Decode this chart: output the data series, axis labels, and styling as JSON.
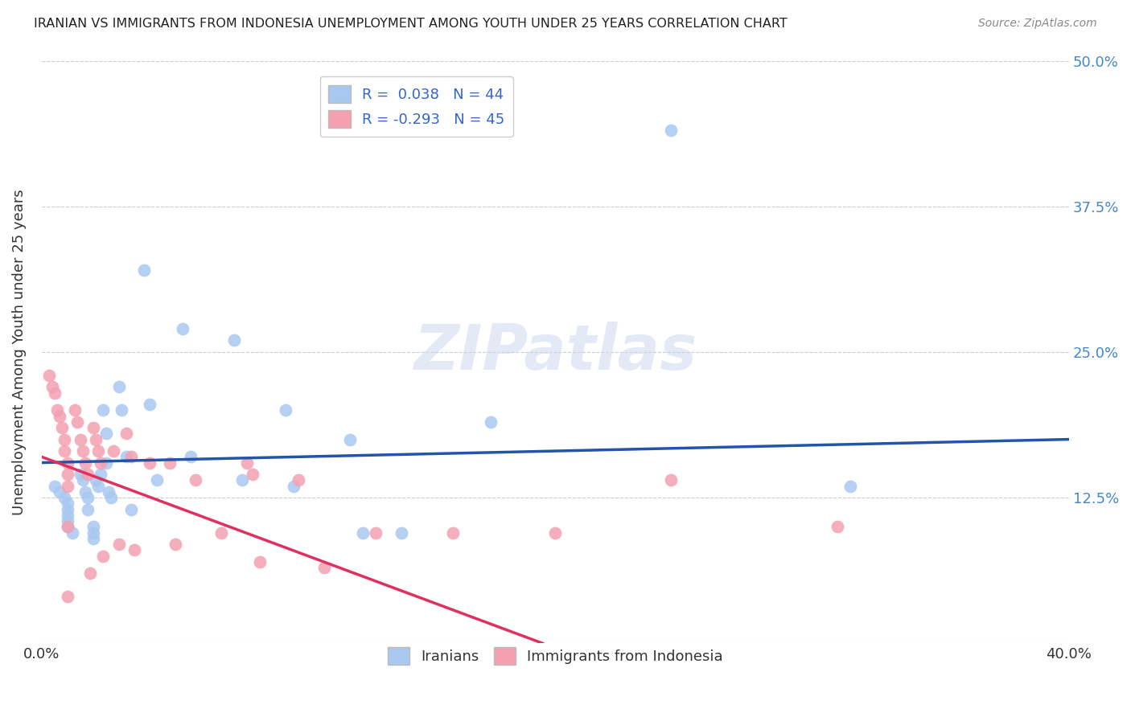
{
  "title": "IRANIAN VS IMMIGRANTS FROM INDONESIA UNEMPLOYMENT AMONG YOUTH UNDER 25 YEARS CORRELATION CHART",
  "source": "Source: ZipAtlas.com",
  "ylabel": "Unemployment Among Youth under 25 years",
  "xlim": [
    0.0,
    0.4
  ],
  "ylim": [
    0.0,
    0.5
  ],
  "xticks": [
    0.0,
    0.05,
    0.1,
    0.15,
    0.2,
    0.25,
    0.3,
    0.35,
    0.4
  ],
  "xticklabels": [
    "0.0%",
    "",
    "",
    "",
    "",
    "",
    "",
    "",
    "40.0%"
  ],
  "yticks": [
    0.0,
    0.125,
    0.25,
    0.375,
    0.5
  ],
  "yticklabels": [
    "",
    "12.5%",
    "25.0%",
    "37.5%",
    "50.0%"
  ],
  "legend_r_iranian": "0.038",
  "legend_n_iranian": "44",
  "legend_r_indonesia": "-0.293",
  "legend_n_indonesia": "45",
  "iranian_color": "#a8c8f0",
  "indonesia_color": "#f4a0b0",
  "iranian_line_color": "#2255aa",
  "indonesia_line_color": "#e03060",
  "watermark": "ZIPatlas",
  "iranian_line": [
    [
      0.0,
      0.155
    ],
    [
      0.4,
      0.175
    ]
  ],
  "indonesia_line_solid": [
    [
      0.0,
      0.16
    ],
    [
      0.195,
      0.0
    ]
  ],
  "indonesia_line_dashed": [
    [
      0.195,
      0.0
    ],
    [
      0.4,
      -0.12
    ]
  ],
  "iranians_x": [
    0.005,
    0.007,
    0.009,
    0.01,
    0.01,
    0.01,
    0.01,
    0.01,
    0.012,
    0.015,
    0.016,
    0.017,
    0.018,
    0.018,
    0.02,
    0.02,
    0.02,
    0.021,
    0.022,
    0.023,
    0.024,
    0.025,
    0.025,
    0.026,
    0.027,
    0.03,
    0.031,
    0.033,
    0.035,
    0.04,
    0.042,
    0.045,
    0.055,
    0.058,
    0.075,
    0.078,
    0.095,
    0.098,
    0.12,
    0.125,
    0.14,
    0.175,
    0.245,
    0.315
  ],
  "iranians_y": [
    0.135,
    0.13,
    0.125,
    0.12,
    0.115,
    0.11,
    0.105,
    0.1,
    0.095,
    0.145,
    0.14,
    0.13,
    0.125,
    0.115,
    0.1,
    0.095,
    0.09,
    0.14,
    0.135,
    0.145,
    0.2,
    0.155,
    0.18,
    0.13,
    0.125,
    0.22,
    0.2,
    0.16,
    0.115,
    0.32,
    0.205,
    0.14,
    0.27,
    0.16,
    0.26,
    0.14,
    0.2,
    0.135,
    0.175,
    0.095,
    0.095,
    0.19,
    0.44,
    0.135
  ],
  "indonesia_x": [
    0.003,
    0.004,
    0.005,
    0.006,
    0.007,
    0.008,
    0.009,
    0.009,
    0.01,
    0.01,
    0.01,
    0.01,
    0.01,
    0.013,
    0.014,
    0.015,
    0.016,
    0.017,
    0.018,
    0.019,
    0.02,
    0.021,
    0.022,
    0.023,
    0.024,
    0.028,
    0.03,
    0.033,
    0.035,
    0.036,
    0.042,
    0.05,
    0.052,
    0.06,
    0.07,
    0.08,
    0.082,
    0.085,
    0.1,
    0.11,
    0.13,
    0.16,
    0.2,
    0.245,
    0.31
  ],
  "indonesia_y": [
    0.23,
    0.22,
    0.215,
    0.2,
    0.195,
    0.185,
    0.175,
    0.165,
    0.155,
    0.145,
    0.135,
    0.1,
    0.04,
    0.2,
    0.19,
    0.175,
    0.165,
    0.155,
    0.145,
    0.06,
    0.185,
    0.175,
    0.165,
    0.155,
    0.075,
    0.165,
    0.085,
    0.18,
    0.16,
    0.08,
    0.155,
    0.155,
    0.085,
    0.14,
    0.095,
    0.155,
    0.145,
    0.07,
    0.14,
    0.065,
    0.095,
    0.095,
    0.095,
    0.14,
    0.1
  ]
}
